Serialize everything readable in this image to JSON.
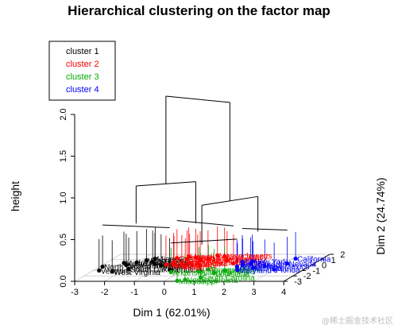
{
  "chart_data": {
    "type": "scatter",
    "title": "Hierarchical clustering on the factor map",
    "xlabel": "Dim 1 (62.01%)",
    "ylabel": "Dim 2 (24.74%)",
    "zlabel": "height",
    "xlim": [
      -3,
      4
    ],
    "ylim": [
      -3,
      2
    ],
    "zlim": [
      0,
      2
    ],
    "x_ticks": [
      "-3",
      "-2",
      "-1",
      "0",
      "1",
      "2",
      "3",
      "4"
    ],
    "y_ticks": [
      "-3",
      "-2",
      "-1",
      "0",
      "1",
      "2"
    ],
    "z_ticks": [
      "0.0",
      "0.5",
      "1.0",
      "1.5",
      "2.0"
    ],
    "grid": true,
    "legend_position": "top-left",
    "legend": [
      {
        "label": "cluster 1",
        "color": "#000000"
      },
      {
        "label": "cluster 2",
        "color": "#ff0000"
      },
      {
        "label": "cluster 3",
        "color": "#00aa00"
      },
      {
        "label": "cluster 4",
        "color": "#0000ff"
      }
    ],
    "points": [
      {
        "label": "North Dakota",
        "x": -2.9,
        "y": -0.3,
        "c": 1
      },
      {
        "label": "Vermont",
        "x": -2.8,
        "y": -1.0,
        "c": 1
      },
      {
        "label": "West Virginia",
        "x": -2.3,
        "y": -1.2,
        "c": 1
      },
      {
        "label": "New Hampshire",
        "x": -2.2,
        "y": 0.0,
        "c": 1
      },
      {
        "label": "South Dakota",
        "x": -1.9,
        "y": -0.7,
        "c": 1
      },
      {
        "label": "Maine",
        "x": -2.4,
        "y": 0.4,
        "c": 1
      },
      {
        "label": "Iowa",
        "x": -2.0,
        "y": 0.5,
        "c": 1
      },
      {
        "label": "Wisconsin",
        "x": -1.8,
        "y": 0.9,
        "c": 1
      },
      {
        "label": "Montana",
        "x": -1.0,
        "y": -0.1,
        "c": 1
      },
      {
        "label": "Kentucky",
        "x": -0.5,
        "y": -0.8,
        "c": 1
      },
      {
        "label": "Idaho",
        "x": -1.3,
        "y": 0.2,
        "c": 1
      },
      {
        "label": "Nebraska",
        "x": -1.5,
        "y": 0.6,
        "c": 1
      },
      {
        "label": "Minnesota",
        "x": -1.6,
        "y": 1.2,
        "c": 1
      },
      {
        "label": "New Jersey",
        "x": 0.6,
        "y": 1.6,
        "c": 2
      },
      {
        "label": "Washington",
        "x": 0.0,
        "y": 0.9,
        "c": 2
      },
      {
        "label": "Ohio",
        "x": -0.5,
        "y": 1.1,
        "c": 2
      },
      {
        "label": "Utah",
        "x": -0.3,
        "y": 1.4,
        "c": 2
      },
      {
        "label": "Massachusetts",
        "x": 0.3,
        "y": 1.8,
        "c": 2
      },
      {
        "label": "Connecticut",
        "x": -0.9,
        "y": 1.3,
        "c": 2
      },
      {
        "label": "Pennsylvania",
        "x": -0.8,
        "y": 0.6,
        "c": 2
      },
      {
        "label": "Indiana",
        "x": -0.4,
        "y": 0.2,
        "c": 2
      },
      {
        "label": "Kansas",
        "x": -0.6,
        "y": 0.0,
        "c": 2
      },
      {
        "label": "Oklahoma",
        "x": -0.2,
        "y": 0.4,
        "c": 2
      },
      {
        "label": "Virginia",
        "x": -0.1,
        "y": -0.4,
        "c": 2
      },
      {
        "label": "Rhode Island",
        "x": 0.2,
        "y": 1.1,
        "c": 2
      },
      {
        "label": "Oregon",
        "x": 0.1,
        "y": 0.3,
        "c": 2
      },
      {
        "label": "Missouri",
        "x": 1.3,
        "y": 0.3,
        "c": 2
      },
      {
        "label": "Delaware",
        "x": 0.9,
        "y": 0.9,
        "c": 2
      },
      {
        "label": "Hawaii",
        "x": -0.6,
        "y": 1.6,
        "c": 2
      },
      {
        "label": "Wyoming",
        "x": -0.9,
        "y": 0.1,
        "c": 2
      },
      {
        "label": "Arkansas",
        "x": -0.3,
        "y": -1.3,
        "c": 3
      },
      {
        "label": "Alabama",
        "x": 0.6,
        "y": -1.2,
        "c": 3
      },
      {
        "label": "Tennessee",
        "x": 0.8,
        "y": -0.8,
        "c": 3
      },
      {
        "label": "Georgia",
        "x": 1.4,
        "y": -1.0,
        "c": 3
      },
      {
        "label": "Louisiana",
        "x": 1.2,
        "y": -1.5,
        "c": 3
      },
      {
        "label": "South Carolina",
        "x": 1.0,
        "y": -2.3,
        "c": 3
      },
      {
        "label": "North Carolina",
        "x": 0.6,
        "y": -2.7,
        "c": 3
      },
      {
        "label": "Mississippi",
        "x": 0.4,
        "y": -2.9,
        "c": 3
      },
      {
        "label": "Alaska",
        "x": 1.7,
        "y": -0.6,
        "c": 3
      },
      {
        "label": "California",
        "x": 3.1,
        "y": 1.2,
        "c": 4
      },
      {
        "label": "Nevada",
        "x": 3.1,
        "y": 0.3,
        "c": 4
      },
      {
        "label": "Florida",
        "x": 3.0,
        "y": -0.8,
        "c": 4
      },
      {
        "label": "New York",
        "x": 1.8,
        "y": 0.7,
        "c": 4
      },
      {
        "label": "Illinois",
        "x": 1.5,
        "y": 0.6,
        "c": 4
      },
      {
        "label": "Arizona",
        "x": 1.7,
        "y": 0.0,
        "c": 4
      },
      {
        "label": "Michigan",
        "x": 2.2,
        "y": -0.5,
        "c": 4
      },
      {
        "label": "Colorado",
        "x": 1.9,
        "y": 0.2,
        "c": 4
      },
      {
        "label": "Texas",
        "x": 1.6,
        "y": -0.3,
        "c": 4
      },
      {
        "label": "New Mexico",
        "x": 2.5,
        "y": -0.2,
        "c": 4
      },
      {
        "label": "Maryland",
        "x": 1.8,
        "y": -0.9,
        "c": 4
      }
    ],
    "dendrogram_heights": {
      "root": 2.0,
      "join_1_2": 0.95,
      "join_3_4": 0.82,
      "cluster_1": 0.5,
      "cluster_2": 0.45,
      "cluster_3": 0.35,
      "cluster_4": 0.4
    }
  },
  "watermark": "@稀土掘金技术社区"
}
